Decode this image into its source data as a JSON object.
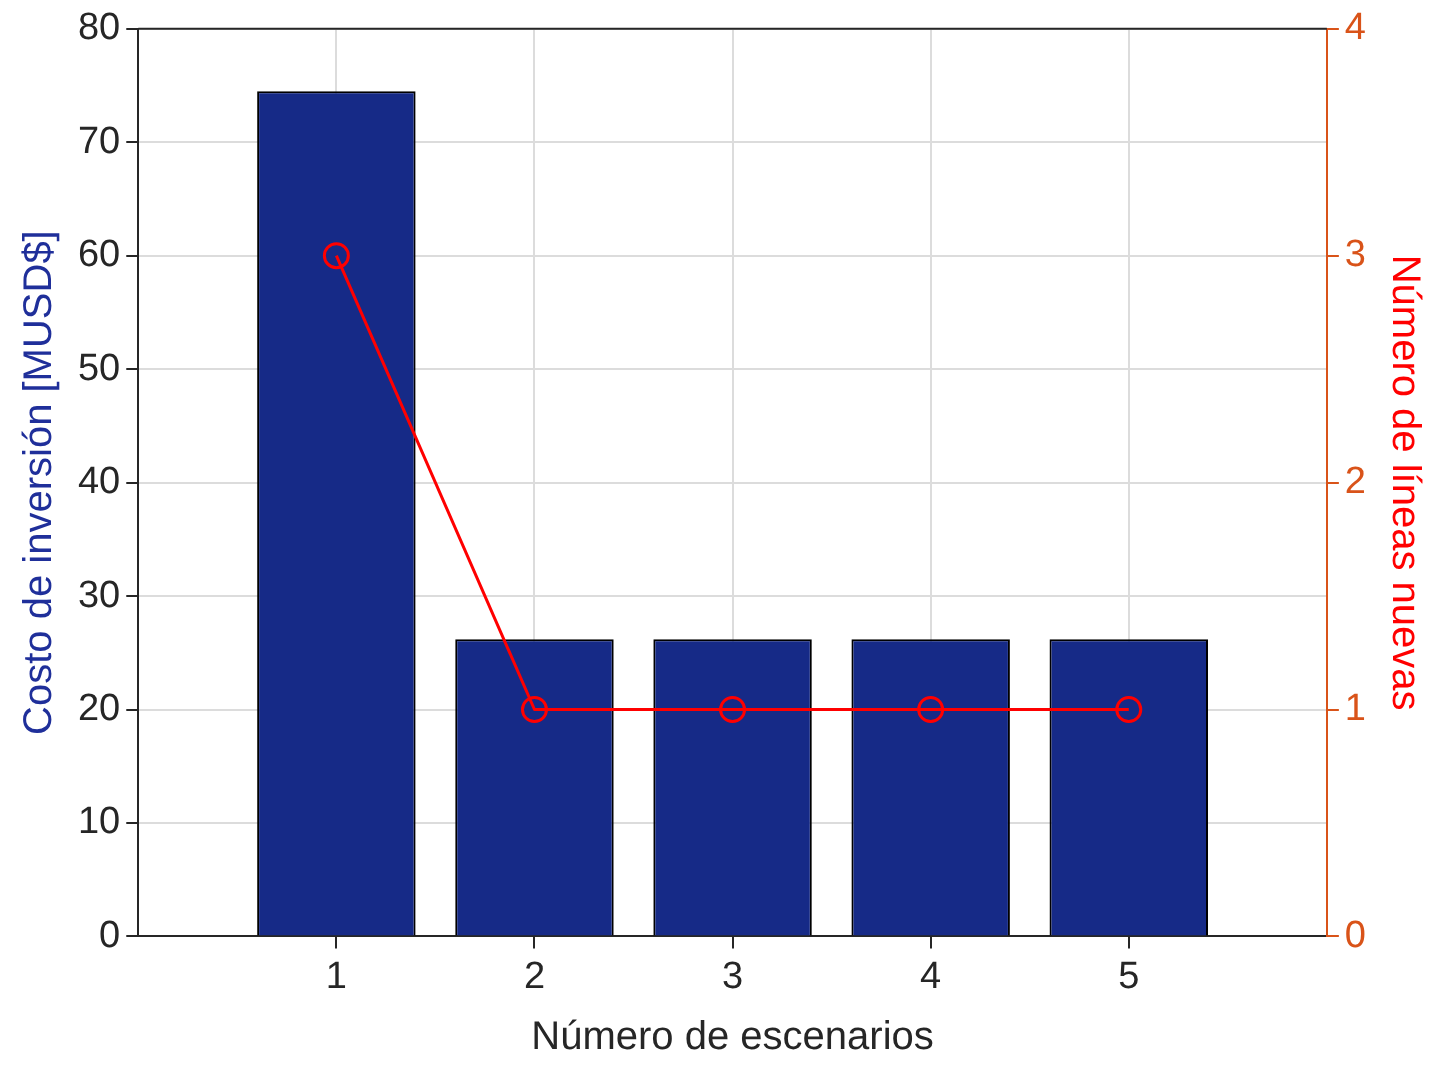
{
  "chart_data": {
    "type": "bar",
    "x": [
      1,
      2,
      3,
      4,
      5
    ],
    "xlabel": "Número de escenarios",
    "ylabel": "Costo de inversión [MUSD$]",
    "y2label": "Número de líneas nuevas",
    "series": [
      {
        "color": "#162a87",
        "values": [
          74.5,
          26.2,
          26.2,
          26.2,
          26.2
        ]
      },
      {
        "type": "line",
        "axis": "y2",
        "color": "#ff0000",
        "values": [
          3,
          1,
          1,
          1,
          1
        ],
        "marker": "circle"
      }
    ],
    "xlim": [
      0,
      6
    ],
    "xticks": [
      1,
      2,
      3,
      4,
      5
    ],
    "ylim": [
      0,
      80
    ],
    "yticks": [
      0,
      10,
      20,
      30,
      40,
      50,
      60,
      70,
      80
    ],
    "y2lim": [
      0,
      4
    ],
    "y2ticks": [
      0,
      1,
      2,
      3,
      4
    ],
    "grid": true,
    "legend": false
  }
}
